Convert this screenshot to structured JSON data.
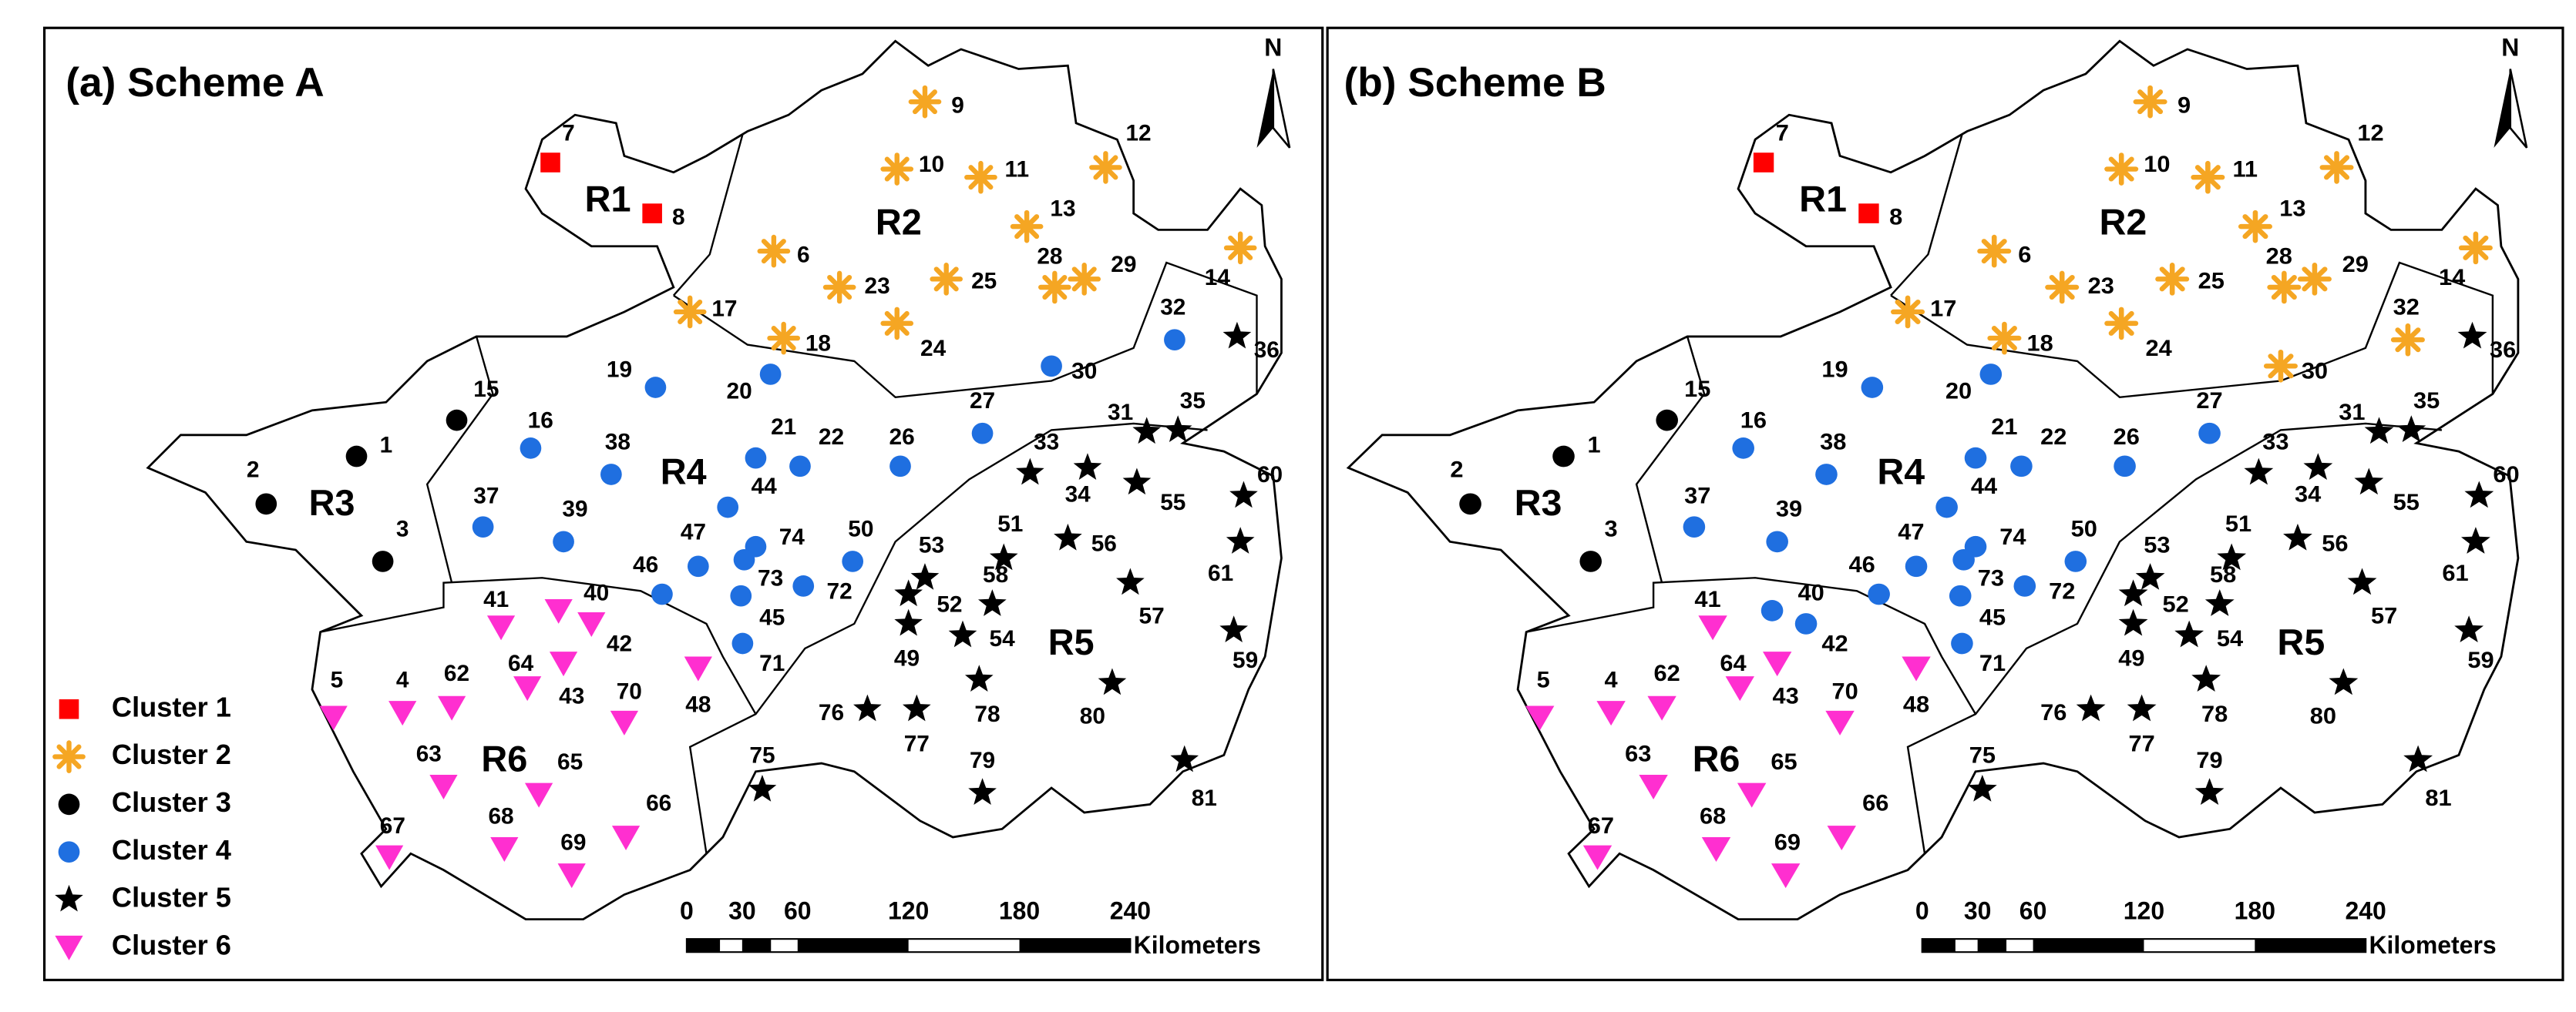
{
  "panels": [
    {
      "title": "(a) Scheme A",
      "north": "N",
      "regions": [
        "R1",
        "R2",
        "R3",
        "R4",
        "R5",
        "R6"
      ],
      "stations": [
        {
          "label": "7",
          "cluster": 1
        },
        {
          "label": "8",
          "cluster": 1
        },
        {
          "label": "9",
          "cluster": 2
        },
        {
          "label": "10",
          "cluster": 2
        },
        {
          "label": "11",
          "cluster": 2
        },
        {
          "label": "12",
          "cluster": 2
        },
        {
          "label": "13",
          "cluster": 2
        },
        {
          "label": "6",
          "cluster": 2
        },
        {
          "label": "23",
          "cluster": 2
        },
        {
          "label": "25",
          "cluster": 2
        },
        {
          "label": "28",
          "cluster": 2
        },
        {
          "label": "29",
          "cluster": 2
        },
        {
          "label": "14",
          "cluster": 2
        },
        {
          "label": "17",
          "cluster": 2
        },
        {
          "label": "18",
          "cluster": 2
        },
        {
          "label": "24",
          "cluster": 2
        },
        {
          "label": "15",
          "cluster": 3
        },
        {
          "label": "1",
          "cluster": 3
        },
        {
          "label": "2",
          "cluster": 3
        },
        {
          "label": "3",
          "cluster": 3
        },
        {
          "label": "19",
          "cluster": 4
        },
        {
          "label": "20",
          "cluster": 4
        },
        {
          "label": "30",
          "cluster": 4
        },
        {
          "label": "32",
          "cluster": 4
        },
        {
          "label": "16",
          "cluster": 4
        },
        {
          "label": "38",
          "cluster": 4
        },
        {
          "label": "21",
          "cluster": 4
        },
        {
          "label": "22",
          "cluster": 4
        },
        {
          "label": "26",
          "cluster": 4
        },
        {
          "label": "27",
          "cluster": 4
        },
        {
          "label": "37",
          "cluster": 4
        },
        {
          "label": "39",
          "cluster": 4
        },
        {
          "label": "44",
          "cluster": 4
        },
        {
          "label": "47",
          "cluster": 4
        },
        {
          "label": "74",
          "cluster": 4
        },
        {
          "label": "73",
          "cluster": 4
        },
        {
          "label": "46",
          "cluster": 4
        },
        {
          "label": "50",
          "cluster": 4
        },
        {
          "label": "72",
          "cluster": 4
        },
        {
          "label": "45",
          "cluster": 4
        },
        {
          "label": "71",
          "cluster": 4
        },
        {
          "label": "36",
          "cluster": 5
        },
        {
          "label": "31",
          "cluster": 5
        },
        {
          "label": "35",
          "cluster": 5
        },
        {
          "label": "33",
          "cluster": 5
        },
        {
          "label": "34",
          "cluster": 5
        },
        {
          "label": "55",
          "cluster": 5
        },
        {
          "label": "60",
          "cluster": 5
        },
        {
          "label": "51",
          "cluster": 5
        },
        {
          "label": "56",
          "cluster": 5
        },
        {
          "label": "61",
          "cluster": 5
        },
        {
          "label": "53",
          "cluster": 5
        },
        {
          "label": "52",
          "cluster": 5
        },
        {
          "label": "58",
          "cluster": 5
        },
        {
          "label": "57",
          "cluster": 5
        },
        {
          "label": "49",
          "cluster": 5
        },
        {
          "label": "54",
          "cluster": 5
        },
        {
          "label": "59",
          "cluster": 5
        },
        {
          "label": "78",
          "cluster": 5
        },
        {
          "label": "80",
          "cluster": 5
        },
        {
          "label": "76",
          "cluster": 5
        },
        {
          "label": "77",
          "cluster": 5
        },
        {
          "label": "75",
          "cluster": 5
        },
        {
          "label": "79",
          "cluster": 5
        },
        {
          "label": "81",
          "cluster": 5
        },
        {
          "label": "41",
          "cluster": 6
        },
        {
          "label": "40",
          "cluster": 6
        },
        {
          "label": "42",
          "cluster": 6
        },
        {
          "label": "64",
          "cluster": 6
        },
        {
          "label": "43",
          "cluster": 6
        },
        {
          "label": "70",
          "cluster": 6
        },
        {
          "label": "48",
          "cluster": 6
        },
        {
          "label": "5",
          "cluster": 6
        },
        {
          "label": "4",
          "cluster": 6
        },
        {
          "label": "62",
          "cluster": 6
        },
        {
          "label": "63",
          "cluster": 6
        },
        {
          "label": "65",
          "cluster": 6
        },
        {
          "label": "68",
          "cluster": 6
        },
        {
          "label": "69",
          "cluster": 6
        },
        {
          "label": "66",
          "cluster": 6
        },
        {
          "label": "67",
          "cluster": 6
        }
      ],
      "scale_bar": {
        "labels": [
          "0",
          "30",
          "60",
          "120",
          "180",
          "240"
        ],
        "unit": "Kilometers"
      }
    },
    {
      "title": "(b) Scheme B",
      "north": "N",
      "regions": [
        "R1",
        "R2",
        "R3",
        "R4",
        "R5",
        "R6"
      ],
      "stations": [
        {
          "label": "7",
          "cluster": 1
        },
        {
          "label": "8",
          "cluster": 1
        },
        {
          "label": "9",
          "cluster": 2
        },
        {
          "label": "10",
          "cluster": 2
        },
        {
          "label": "11",
          "cluster": 2
        },
        {
          "label": "12",
          "cluster": 2
        },
        {
          "label": "13",
          "cluster": 2
        },
        {
          "label": "6",
          "cluster": 2
        },
        {
          "label": "23",
          "cluster": 2
        },
        {
          "label": "25",
          "cluster": 2
        },
        {
          "label": "28",
          "cluster": 2
        },
        {
          "label": "29",
          "cluster": 2
        },
        {
          "label": "14",
          "cluster": 2
        },
        {
          "label": "17",
          "cluster": 2
        },
        {
          "label": "18",
          "cluster": 2
        },
        {
          "label": "24",
          "cluster": 2
        },
        {
          "label": "15",
          "cluster": 3
        },
        {
          "label": "1",
          "cluster": 3
        },
        {
          "label": "2",
          "cluster": 3
        },
        {
          "label": "3",
          "cluster": 3
        },
        {
          "label": "19",
          "cluster": 4
        },
        {
          "label": "20",
          "cluster": 4
        },
        {
          "label": "30",
          "cluster": 2
        },
        {
          "label": "32",
          "cluster": 2
        },
        {
          "label": "16",
          "cluster": 4
        },
        {
          "label": "38",
          "cluster": 4
        },
        {
          "label": "21",
          "cluster": 4
        },
        {
          "label": "22",
          "cluster": 4
        },
        {
          "label": "26",
          "cluster": 4
        },
        {
          "label": "27",
          "cluster": 4
        },
        {
          "label": "37",
          "cluster": 4
        },
        {
          "label": "39",
          "cluster": 4
        },
        {
          "label": "44",
          "cluster": 4
        },
        {
          "label": "47",
          "cluster": 4
        },
        {
          "label": "74",
          "cluster": 4
        },
        {
          "label": "73",
          "cluster": 4
        },
        {
          "label": "46",
          "cluster": 4
        },
        {
          "label": "50",
          "cluster": 4
        },
        {
          "label": "72",
          "cluster": 4
        },
        {
          "label": "45",
          "cluster": 4
        },
        {
          "label": "71",
          "cluster": 4
        },
        {
          "label": "36",
          "cluster": 5
        },
        {
          "label": "31",
          "cluster": 5
        },
        {
          "label": "35",
          "cluster": 5
        },
        {
          "label": "33",
          "cluster": 5
        },
        {
          "label": "34",
          "cluster": 5
        },
        {
          "label": "55",
          "cluster": 5
        },
        {
          "label": "60",
          "cluster": 5
        },
        {
          "label": "51",
          "cluster": 5
        },
        {
          "label": "56",
          "cluster": 5
        },
        {
          "label": "61",
          "cluster": 5
        },
        {
          "label": "53",
          "cluster": 5
        },
        {
          "label": "52",
          "cluster": 5
        },
        {
          "label": "58",
          "cluster": 5
        },
        {
          "label": "57",
          "cluster": 5
        },
        {
          "label": "49",
          "cluster": 5
        },
        {
          "label": "54",
          "cluster": 5
        },
        {
          "label": "59",
          "cluster": 5
        },
        {
          "label": "78",
          "cluster": 5
        },
        {
          "label": "80",
          "cluster": 5
        },
        {
          "label": "76",
          "cluster": 5
        },
        {
          "label": "77",
          "cluster": 5
        },
        {
          "label": "75",
          "cluster": 5
        },
        {
          "label": "79",
          "cluster": 5
        },
        {
          "label": "81",
          "cluster": 5
        },
        {
          "label": "41",
          "cluster": 6
        },
        {
          "label": "40",
          "cluster": 4
        },
        {
          "label": "42",
          "cluster": 4
        },
        {
          "label": "64",
          "cluster": 6
        },
        {
          "label": "43",
          "cluster": 6
        },
        {
          "label": "70",
          "cluster": 6
        },
        {
          "label": "48",
          "cluster": 6
        },
        {
          "label": "5",
          "cluster": 6
        },
        {
          "label": "4",
          "cluster": 6
        },
        {
          "label": "62",
          "cluster": 6
        },
        {
          "label": "63",
          "cluster": 6
        },
        {
          "label": "65",
          "cluster": 6
        },
        {
          "label": "68",
          "cluster": 6
        },
        {
          "label": "69",
          "cluster": 6
        },
        {
          "label": "66",
          "cluster": 6
        },
        {
          "label": "67",
          "cluster": 6
        }
      ],
      "scale_bar": {
        "labels": [
          "0",
          "30",
          "60",
          "120",
          "180",
          "240"
        ],
        "unit": "Kilometers"
      }
    }
  ],
  "legend": [
    {
      "name": "Cluster 1",
      "color": "#ff0000",
      "shape": "square"
    },
    {
      "name": "Cluster 2",
      "color": "#f5a623",
      "shape": "asterisk"
    },
    {
      "name": "Cluster 3",
      "color": "#000000",
      "shape": "circle"
    },
    {
      "name": "Cluster 4",
      "color": "#1f6fe0",
      "shape": "circle"
    },
    {
      "name": "Cluster 5",
      "color": "#000000",
      "shape": "star"
    },
    {
      "name": "Cluster 6",
      "color": "#ff2fd0",
      "shape": "triangle"
    }
  ]
}
